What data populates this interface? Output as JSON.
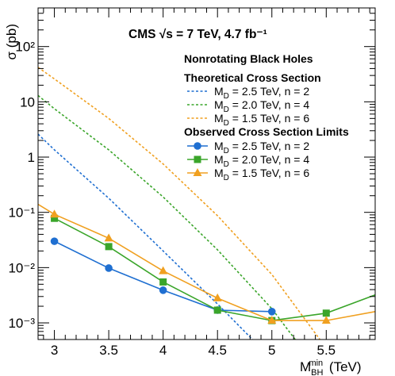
{
  "chart_data": {
    "type": "line",
    "header": "CMS √s = 7 TeV, 4.7 fb⁻¹",
    "ylabel": "σ (pb)",
    "xlabel": "M_BH^min (TeV)",
    "xlim": [
      2.85,
      5.95
    ],
    "ylim": [
      0.0005,
      500
    ],
    "yscale": "log",
    "x_ticks": [
      3,
      3.5,
      4,
      4.5,
      5,
      5.5
    ],
    "x_tick_labels": [
      "3",
      "3.5",
      "4",
      "4.5",
      "5",
      "5.5"
    ],
    "y_ticks": [
      0.001,
      0.01,
      0.1,
      1,
      10,
      100
    ],
    "y_tick_labels": [
      "10⁻³",
      "10⁻²",
      "10⁻¹",
      "1",
      "10",
      "10²"
    ],
    "legend": {
      "title": "Nonrotating Black Holes",
      "group1_title": "Theoretical Cross Section",
      "group2_title": "Observed Cross Section Limits",
      "placement": "top-right"
    },
    "theory_series": [
      {
        "name": "M_D = 2.5 TeV, n = 2",
        "color": "#1f6fd1",
        "x": [
          2.85,
          3.0,
          3.5,
          4.0,
          4.5,
          5.0
        ],
        "y": [
          2.6,
          1.35,
          0.18,
          0.02,
          0.0022,
          0.00022
        ]
      },
      {
        "name": "M_D = 2.0 TeV, n = 4",
        "color": "#3aa52a",
        "x": [
          2.85,
          3.0,
          3.5,
          4.0,
          4.5,
          5.0,
          5.3
        ],
        "y": [
          13,
          7.5,
          1.35,
          0.19,
          0.021,
          0.0018,
          0.0003
        ]
      },
      {
        "name": "M_D = 1.5 TeV, n = 6",
        "color": "#f0a020",
        "x": [
          2.85,
          3.0,
          3.5,
          4.0,
          4.5,
          5.0,
          5.5
        ],
        "y": [
          42,
          26,
          5.0,
          0.75,
          0.087,
          0.0075,
          0.00035
        ]
      }
    ],
    "limit_series": [
      {
        "name": "M_D = 2.5 TeV, n = 2",
        "color": "#1f6fd1",
        "marker": "circle",
        "x": [
          3.0,
          3.5,
          4.0,
          4.5,
          5.0
        ],
        "y": [
          0.03,
          0.0098,
          0.0039,
          0.0017,
          0.0016
        ]
      },
      {
        "name": "M_D = 2.0 TeV, n = 4",
        "color": "#3aa52a",
        "marker": "square",
        "x": [
          3.0,
          3.5,
          4.0,
          4.5,
          5.0,
          5.5,
          5.95
        ],
        "y": [
          0.078,
          0.024,
          0.0055,
          0.0017,
          0.0011,
          0.0015,
          0.0032
        ]
      },
      {
        "name": "M_D = 1.5 TeV, n = 6",
        "color": "#f0a020",
        "marker": "triangle",
        "x": [
          2.85,
          3.0,
          3.5,
          4.0,
          4.5,
          5.0,
          5.5,
          5.95
        ],
        "y": [
          0.14,
          0.092,
          0.034,
          0.0087,
          0.0028,
          0.0011,
          0.0011,
          0.0016
        ]
      }
    ]
  }
}
